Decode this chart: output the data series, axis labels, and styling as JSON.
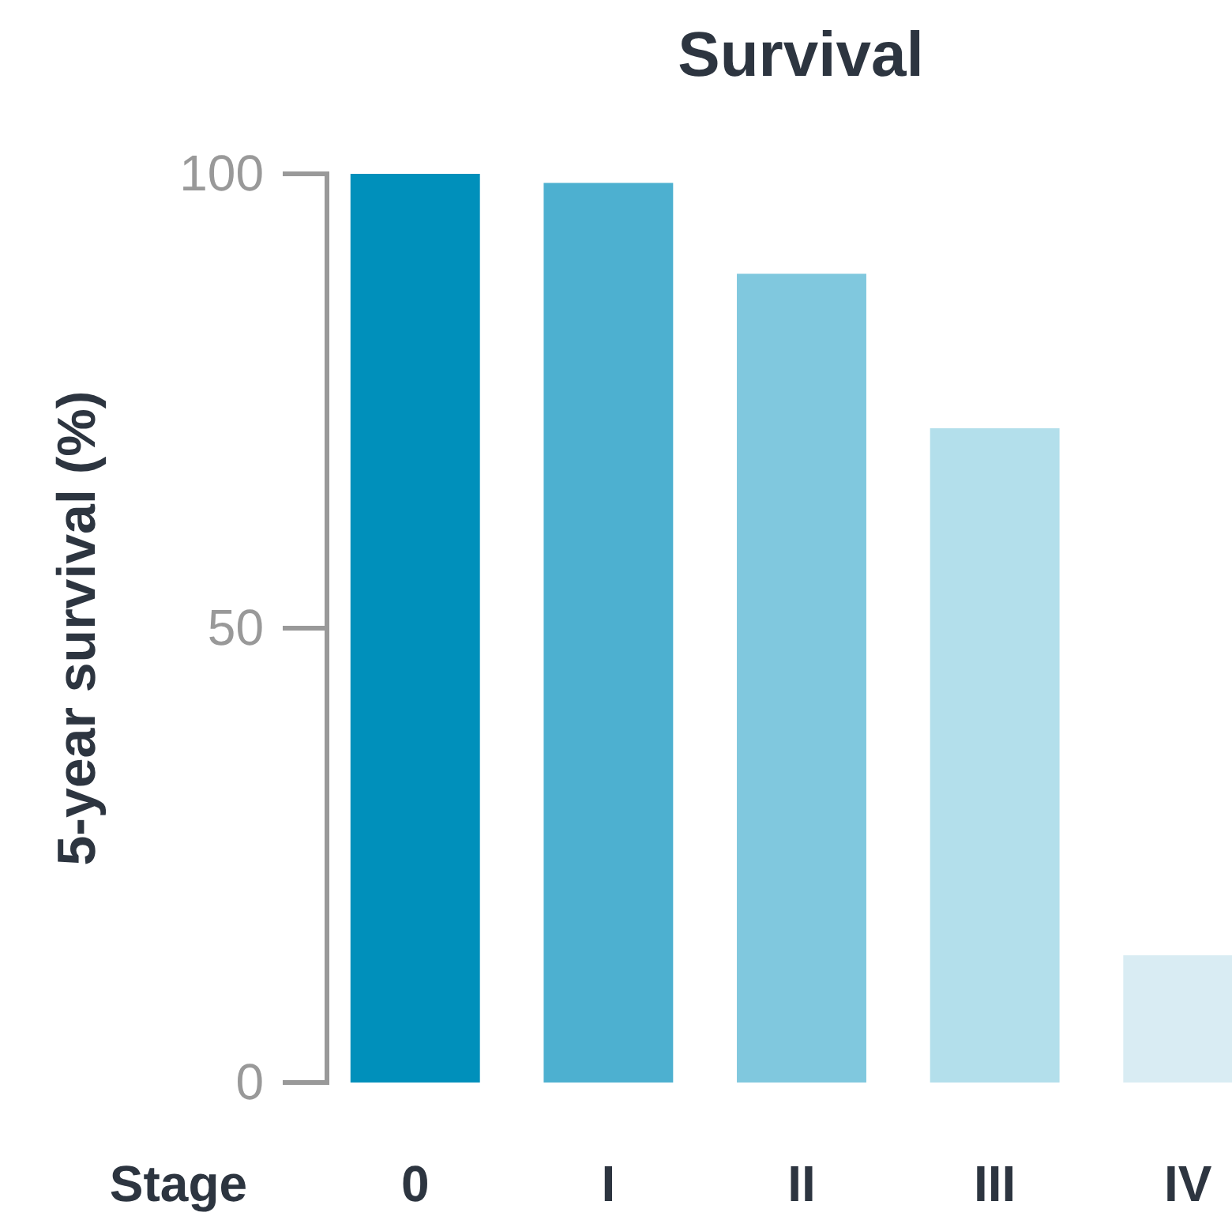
{
  "chart_data": {
    "type": "bar",
    "title": "Survival",
    "xlabel": "Stage",
    "ylabel": "5-year survival (%)",
    "categories": [
      "0",
      "I",
      "II",
      "III",
      "IV"
    ],
    "values": [
      100,
      99,
      89,
      72,
      14
    ],
    "colors": [
      "#0090bb",
      "#4db0d0",
      "#80c8de",
      "#b3dfeb",
      "#d9ecf3"
    ],
    "ylim": [
      0,
      100
    ],
    "yticks": [
      0,
      50,
      100
    ],
    "grid": false
  }
}
